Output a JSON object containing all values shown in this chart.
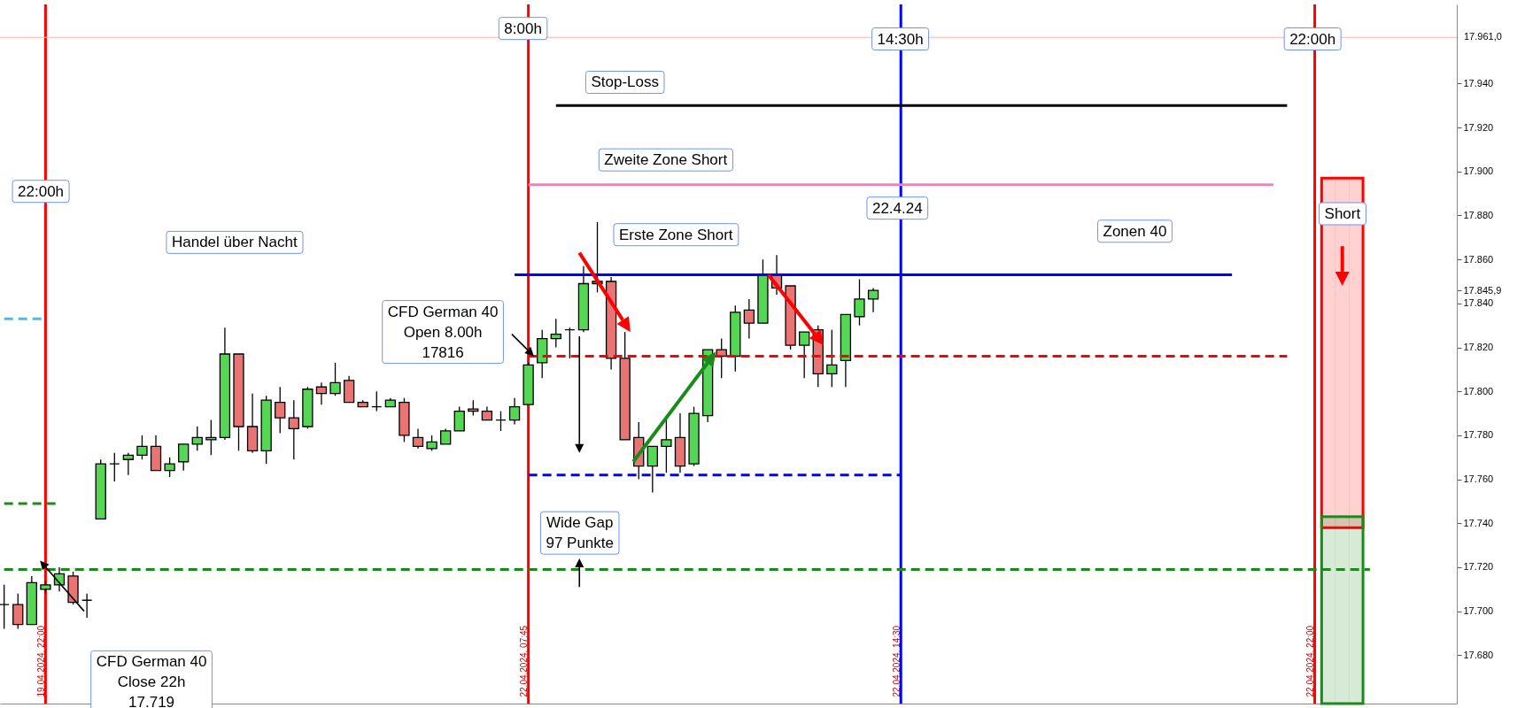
{
  "chart_data": {
    "type": "candlestick",
    "ylim": [
      17658,
      17976
    ],
    "categories": [
      null,
      null,
      null,
      "19.04.2024, 22:00",
      null,
      null,
      null,
      null,
      null,
      null,
      null,
      null,
      null,
      null,
      null,
      null,
      null,
      null,
      null,
      null,
      null,
      null,
      null,
      null,
      null,
      null,
      null,
      null,
      null,
      null,
      null,
      null,
      null,
      null,
      null,
      null,
      null,
      null,
      "22.04.2024, 07:45",
      null,
      null,
      null,
      null,
      null,
      null,
      null,
      null,
      null,
      null,
      null,
      null,
      null,
      null,
      null,
      null,
      null,
      null,
      null,
      null,
      null,
      null,
      null,
      null,
      null,
      null,
      "22.04.2024, 14:30",
      null,
      null,
      null,
      null,
      null,
      null,
      null,
      null,
      null,
      null,
      null,
      null,
      null,
      null,
      null,
      null,
      null,
      null,
      null,
      null,
      null,
      null,
      null,
      null,
      null,
      null,
      null,
      null,
      null,
      "22.04.2024, 22:00",
      null,
      null,
      null,
      null,
      null,
      null,
      null,
      null,
      null,
      null
    ],
    "yticks": [
      {
        "value": 17680,
        "label": "17.680"
      },
      {
        "value": 17700,
        "label": "17.700"
      },
      {
        "value": 17720,
        "label": "17.720"
      },
      {
        "value": 17740,
        "label": "17.740"
      },
      {
        "value": 17760,
        "label": "17.760"
      },
      {
        "value": 17780,
        "label": "17.780"
      },
      {
        "value": 17800,
        "label": "17.800"
      },
      {
        "value": 17820,
        "label": "17.820"
      },
      {
        "value": 17840,
        "label": "17.840"
      },
      {
        "value": 17845.9,
        "label": "17.845,9"
      },
      {
        "value": 17860,
        "label": "17.860"
      },
      {
        "value": 17880,
        "label": "17.880"
      },
      {
        "value": 17900,
        "label": "17.900"
      },
      {
        "value": 17920,
        "label": "17.920"
      },
      {
        "value": 17940,
        "label": "17.940"
      }
    ],
    "series": [
      {
        "type": "bar",
        "color": "#ff0000",
        "values": [
          null,
          null,
          null,
          null,
          null,
          null,
          null,
          null,
          null,
          null,
          null,
          null,
          null,
          null,
          null,
          null,
          null,
          null,
          null,
          null,
          null,
          null,
          null,
          null,
          null,
          null,
          null,
          null,
          null,
          null,
          null,
          null,
          null,
          null,
          null,
          null,
          null,
          null,
          null,
          null,
          null,
          null,
          null,
          null,
          null,
          null,
          null,
          null,
          null,
          null,
          null,
          null,
          null,
          null,
          null,
          null,
          null,
          null,
          null,
          null,
          null,
          null,
          null,
          null,
          null,
          null,
          null,
          null,
          null,
          null,
          null,
          null,
          null,
          null,
          null,
          null,
          null,
          null,
          null,
          null,
          null,
          null,
          null,
          null,
          null,
          null,
          null,
          null,
          null,
          null,
          null,
          null,
          null,
          null,
          null,
          null,
          159,
          159,
          159,
          null,
          null,
          null,
          null,
          null,
          null,
          null
        ],
        "base": [
          null,
          null,
          null,
          null,
          null,
          null,
          null,
          null,
          null,
          null,
          null,
          null,
          null,
          null,
          null,
          null,
          null,
          null,
          null,
          null,
          null,
          null,
          null,
          null,
          null,
          null,
          null,
          null,
          null,
          null,
          null,
          null,
          null,
          null,
          null,
          null,
          null,
          null,
          null,
          null,
          null,
          null,
          null,
          null,
          null,
          null,
          null,
          null,
          null,
          null,
          null,
          null,
          null,
          null,
          null,
          null,
          null,
          null,
          null,
          null,
          null,
          null,
          null,
          null,
          null,
          null,
          null,
          null,
          null,
          null,
          null,
          null,
          null,
          null,
          null,
          null,
          null,
          null,
          null,
          null,
          null,
          null,
          null,
          null,
          null,
          null,
          null,
          null,
          null,
          null,
          null,
          null,
          null,
          null,
          null,
          null,
          17738,
          17738,
          17738,
          null,
          null,
          null,
          null,
          null,
          null,
          null
        ]
      },
      {
        "type": "bar",
        "color": "#1a8a1a",
        "values": [
          null,
          null,
          null,
          null,
          null,
          null,
          null,
          null,
          null,
          null,
          null,
          null,
          null,
          null,
          null,
          null,
          null,
          null,
          null,
          null,
          null,
          null,
          null,
          null,
          null,
          null,
          null,
          null,
          null,
          null,
          null,
          null,
          null,
          null,
          null,
          null,
          null,
          null,
          null,
          null,
          null,
          null,
          null,
          null,
          null,
          null,
          null,
          null,
          null,
          null,
          null,
          null,
          null,
          null,
          null,
          null,
          null,
          null,
          null,
          null,
          null,
          null,
          null,
          null,
          null,
          null,
          null,
          null,
          null,
          null,
          null,
          null,
          null,
          null,
          null,
          null,
          null,
          null,
          null,
          null,
          null,
          null,
          null,
          null,
          null,
          null,
          null,
          null,
          null,
          null,
          null,
          null,
          null,
          null,
          null,
          null,
          85,
          85,
          85,
          null,
          null,
          null,
          null,
          null,
          null,
          null
        ],
        "base": [
          null,
          null,
          null,
          null,
          null,
          null,
          null,
          null,
          null,
          null,
          null,
          null,
          null,
          null,
          null,
          null,
          null,
          null,
          null,
          null,
          null,
          null,
          null,
          null,
          null,
          null,
          null,
          null,
          null,
          null,
          null,
          null,
          null,
          null,
          null,
          null,
          null,
          null,
          null,
          null,
          null,
          null,
          null,
          null,
          null,
          null,
          null,
          null,
          null,
          null,
          null,
          null,
          null,
          null,
          null,
          null,
          null,
          null,
          null,
          null,
          null,
          null,
          null,
          null,
          null,
          null,
          null,
          null,
          null,
          null,
          null,
          null,
          null,
          null,
          null,
          null,
          null,
          null,
          null,
          null,
          null,
          null,
          null,
          null,
          null,
          null,
          null,
          null,
          null,
          null,
          null,
          null,
          null,
          null,
          null,
          null,
          17658,
          17658,
          17658,
          null,
          null,
          null,
          null,
          null,
          null,
          null
        ]
      },
      {
        "type": "line",
        "color": "#1a8a1a",
        "line_style": "dashed",
        "values": [
          17719,
          17719,
          17719,
          17719,
          17719,
          17719,
          17719,
          17719,
          17719,
          17719,
          17719,
          17719,
          17719,
          17719,
          17719,
          17719,
          17719,
          17719,
          17719,
          17719,
          17719,
          17719,
          17719,
          17719,
          17719,
          17719,
          17719,
          17719,
          17719,
          17719,
          17719,
          17719,
          17719,
          17719,
          17719,
          17719,
          17719,
          17719,
          17719,
          17719,
          17719,
          17719,
          17719,
          17719,
          17719,
          17719,
          17719,
          17719,
          17719,
          17719,
          17719,
          17719,
          17719,
          17719,
          17719,
          17719,
          17719,
          17719,
          17719,
          17719,
          17719,
          17719,
          17719,
          17719,
          17719,
          17719,
          17719,
          17719,
          17719,
          17719,
          17719,
          17719,
          17719,
          17719,
          17719,
          17719,
          17719,
          17719,
          17719,
          17719,
          17719,
          17719,
          17719,
          17719,
          17719,
          17719,
          17719,
          17719,
          17719,
          17719,
          17719,
          17719,
          17719,
          17719,
          17719,
          17719,
          17719,
          17719,
          17719,
          17719,
          null,
          null,
          null,
          null,
          null,
          null
        ]
      },
      {
        "type": "line",
        "color": "#1a8a1a",
        "line_style": "dashed",
        "values": [
          17749,
          17749,
          17749,
          17749,
          17749,
          null,
          null,
          null,
          null,
          null,
          null,
          null,
          null,
          null,
          null,
          null,
          null,
          null,
          null,
          null,
          null,
          null,
          null,
          null,
          null,
          null,
          null,
          null,
          null,
          null,
          null,
          null,
          null,
          null,
          null,
          null,
          null,
          null,
          null,
          null,
          null,
          null,
          null,
          null,
          null,
          null,
          null,
          null,
          null,
          null,
          null,
          null,
          null,
          null,
          null,
          null,
          null,
          null,
          null,
          null,
          null,
          null,
          null,
          null,
          null,
          null,
          null,
          null,
          null,
          null,
          null,
          null,
          null,
          null,
          null,
          null,
          null,
          null,
          null,
          null,
          null,
          null,
          null,
          null,
          null,
          null,
          null,
          null,
          null,
          null,
          null,
          null,
          null,
          null,
          null,
          null,
          null,
          null,
          null,
          null,
          null,
          null,
          null,
          null,
          null,
          null
        ]
      },
      {
        "type": "line",
        "color": "#3fbfef",
        "line_style": "dashed",
        "values": [
          17833,
          17833,
          17833,
          17833,
          null,
          null,
          null,
          null,
          null,
          null,
          null,
          null,
          null,
          null,
          null,
          null,
          null,
          null,
          null,
          null,
          null,
          null,
          null,
          null,
          null,
          null,
          null,
          null,
          null,
          null,
          null,
          null,
          null,
          null,
          null,
          null,
          null,
          null,
          null,
          null,
          null,
          null,
          null,
          null,
          null,
          null,
          null,
          null,
          null,
          null,
          null,
          null,
          null,
          null,
          null,
          null,
          null,
          null,
          null,
          null,
          null,
          null,
          null,
          null,
          null,
          null,
          null,
          null,
          null,
          null,
          null,
          null,
          null,
          null,
          null,
          null,
          null,
          null,
          null,
          null,
          null,
          null,
          null,
          null,
          null,
          null,
          null,
          null,
          null,
          null,
          null,
          null,
          null,
          null,
          null,
          null,
          null,
          null,
          null,
          null,
          null,
          null,
          null,
          null,
          null,
          null
        ]
      },
      {
        "type": "line",
        "color": "#000000",
        "values": [
          null,
          null,
          null,
          null,
          null,
          null,
          null,
          null,
          null,
          null,
          null,
          null,
          null,
          null,
          null,
          null,
          null,
          null,
          null,
          null,
          null,
          null,
          null,
          null,
          null,
          null,
          null,
          null,
          null,
          null,
          null,
          null,
          null,
          null,
          null,
          null,
          null,
          null,
          null,
          null,
          17930,
          17930,
          17930,
          17930,
          17930,
          17930,
          17930,
          17930,
          17930,
          17930,
          17930,
          17930,
          17930,
          17930,
          17930,
          17930,
          17930,
          17930,
          17930,
          17930,
          17930,
          17930,
          17930,
          17930,
          17930,
          17930,
          17930,
          17930,
          17930,
          17930,
          17930,
          17930,
          17930,
          17930,
          17930,
          17930,
          17930,
          17930,
          17930,
          17930,
          17930,
          17930,
          17930,
          17930,
          17930,
          17930,
          17930,
          17930,
          17930,
          17930,
          17930,
          17930,
          17930,
          17930,
          null,
          null,
          null,
          null,
          null,
          null,
          null,
          null,
          null,
          null,
          null,
          null
        ]
      },
      {
        "type": "line",
        "color": "#f080c0",
        "values": [
          null,
          null,
          null,
          null,
          null,
          null,
          null,
          null,
          null,
          null,
          null,
          null,
          null,
          null,
          null,
          null,
          null,
          null,
          null,
          null,
          null,
          null,
          null,
          null,
          null,
          null,
          null,
          null,
          null,
          null,
          null,
          null,
          null,
          null,
          null,
          null,
          null,
          null,
          17894,
          17894,
          17894,
          17894,
          17894,
          17894,
          17894,
          17894,
          17894,
          17894,
          17894,
          17894,
          17894,
          17894,
          17894,
          17894,
          17894,
          17894,
          17894,
          17894,
          17894,
          17894,
          17894,
          17894,
          17894,
          17894,
          17894,
          17894,
          17894,
          17894,
          17894,
          17894,
          17894,
          17894,
          17894,
          17894,
          17894,
          17894,
          17894,
          17894,
          17894,
          17894,
          17894,
          17894,
          17894,
          17894,
          17894,
          17894,
          17894,
          17894,
          17894,
          17894,
          17894,
          17894,
          17894,
          null,
          null,
          null,
          null,
          null,
          null,
          null,
          null,
          null,
          null,
          null,
          null,
          null
        ]
      },
      {
        "type": "line",
        "color": "#0000ff",
        "values": [
          null,
          null,
          null,
          null,
          null,
          null,
          null,
          null,
          null,
          null,
          null,
          null,
          null,
          null,
          null,
          null,
          null,
          null,
          null,
          null,
          null,
          null,
          null,
          null,
          null,
          null,
          null,
          null,
          null,
          null,
          null,
          null,
          null,
          null,
          null,
          null,
          null,
          17853,
          17853,
          17853,
          17853,
          17853,
          17853,
          17853,
          17853,
          17853,
          17853,
          17853,
          17853,
          17853,
          17853,
          17853,
          17853,
          17853,
          17853,
          17853,
          17853,
          17853,
          17853,
          17853,
          17853,
          17853,
          17853,
          17853,
          17853,
          17853,
          17853,
          17853,
          17853,
          17853,
          17853,
          17853,
          17853,
          17853,
          17853,
          17853,
          17853,
          17853,
          17853,
          17853,
          17853,
          17853,
          17853,
          17853,
          17853,
          17853,
          17853,
          17853,
          17853,
          17853,
          null,
          null,
          null,
          null,
          null,
          null,
          null,
          null,
          null,
          null,
          null,
          null,
          null,
          null,
          null,
          null
        ]
      },
      {
        "type": "line",
        "color": "#ff0000",
        "line_style": "dashed",
        "values": [
          null,
          null,
          null,
          null,
          null,
          null,
          null,
          null,
          null,
          null,
          null,
          null,
          null,
          null,
          null,
          null,
          null,
          null,
          null,
          null,
          null,
          null,
          null,
          null,
          null,
          null,
          null,
          null,
          null,
          null,
          null,
          null,
          null,
          null,
          null,
          null,
          null,
          null,
          17816,
          17816,
          17816,
          17816,
          17816,
          17816,
          17816,
          17816,
          17816,
          17816,
          17816,
          17816,
          17816,
          17816,
          17816,
          17816,
          17816,
          17816,
          17816,
          17816,
          17816,
          17816,
          17816,
          17816,
          17816,
          17816,
          17816,
          17816,
          17816,
          17816,
          17816,
          17816,
          17816,
          17816,
          17816,
          17816,
          17816,
          17816,
          17816,
          17816,
          17816,
          17816,
          17816,
          17816,
          17816,
          17816,
          17816,
          17816,
          17816,
          17816,
          17816,
          17816,
          17816,
          17816,
          17816,
          17816,
          null,
          null,
          null,
          null,
          null,
          null,
          null,
          null,
          null,
          null,
          null,
          null
        ]
      },
      {
        "type": "line",
        "color": "#0000ff",
        "line_style": "dashed",
        "values": [
          null,
          null,
          null,
          null,
          null,
          null,
          null,
          null,
          null,
          null,
          null,
          null,
          null,
          null,
          null,
          null,
          null,
          null,
          null,
          null,
          null,
          null,
          null,
          null,
          null,
          null,
          null,
          null,
          null,
          null,
          null,
          null,
          null,
          null,
          null,
          null,
          null,
          null,
          17762,
          17762,
          17762,
          17762,
          17762,
          17762,
          17762,
          17762,
          17762,
          17762,
          17762,
          17762,
          17762,
          17762,
          17762,
          17762,
          17762,
          17762,
          17762,
          17762,
          17762,
          17762,
          17762,
          17762,
          17762,
          17762,
          17762,
          17762,
          null,
          null,
          null,
          null,
          null,
          null,
          null,
          null,
          null,
          null,
          null,
          null,
          null,
          null,
          null,
          null,
          null,
          null,
          null,
          null,
          null,
          null,
          null,
          null,
          null,
          null,
          null,
          null,
          null,
          null,
          null,
          null,
          null,
          null,
          null,
          null,
          null,
          null,
          null,
          null
        ]
      },
      {
        "ohlc": [
          [
            17703,
            17712,
            17692,
            17703
          ],
          [
            17703,
            17708,
            17692,
            17694
          ],
          [
            17694,
            17716,
            17694,
            17713
          ],
          [
            17710,
            17714,
            17708,
            17712
          ],
          [
            17712,
            17720,
            17709,
            17717
          ],
          [
            17716,
            17718,
            17703,
            17704
          ],
          [
            17705,
            17708,
            17697,
            17705
          ],
          [
            17742,
            17769,
            17742,
            17767
          ],
          [
            17767,
            17772,
            17759,
            17767
          ],
          [
            17769,
            17772,
            17762,
            17771
          ],
          [
            17771,
            17780,
            17769,
            17775
          ],
          [
            17775,
            17780,
            17764,
            17764
          ],
          [
            17764,
            17770,
            17761,
            17767
          ],
          [
            17768,
            17776,
            17764,
            17776
          ],
          [
            17776,
            17784,
            17773,
            17779
          ],
          [
            17778,
            17787,
            17771,
            17779
          ],
          [
            17779,
            17829,
            17778,
            17817
          ],
          [
            17817,
            17817,
            17773,
            17784
          ],
          [
            17784,
            17799,
            17772,
            17773
          ],
          [
            17773,
            17798,
            17767,
            17796
          ],
          [
            17795,
            17802,
            17781,
            17788
          ],
          [
            17788,
            17796,
            17769,
            17783
          ],
          [
            17784,
            17802,
            17783,
            17801
          ],
          [
            17802,
            17804,
            17794,
            17799
          ],
          [
            17799,
            17813,
            17798,
            17804
          ],
          [
            17805,
            17807,
            17795,
            17795
          ],
          [
            17795,
            17796,
            17793,
            17793
          ],
          [
            17793,
            17800,
            17791,
            17793
          ],
          [
            17793,
            17797,
            17793,
            17796
          ],
          [
            17795,
            17797,
            17777,
            17780
          ],
          [
            17779,
            17783,
            17774,
            17775
          ],
          [
            17774,
            17780,
            17773,
            17777
          ],
          [
            17776,
            17783,
            17776,
            17782
          ],
          [
            17782,
            17793,
            17782,
            17791
          ],
          [
            17792,
            17796,
            17789,
            17791
          ],
          [
            17791,
            17793,
            17787,
            17787
          ],
          [
            17787,
            17791,
            17782,
            17787
          ],
          [
            17787,
            17797,
            17785,
            17793
          ],
          [
            17794,
            17813,
            17794,
            17812
          ],
          [
            17813,
            17828,
            17806,
            17824
          ],
          [
            17824,
            17833,
            17820,
            17826
          ],
          [
            17828,
            17829,
            17815,
            17828
          ],
          [
            17828,
            17857,
            17827,
            17849
          ],
          [
            17850,
            17877,
            17845,
            17849
          ],
          [
            17850,
            17852,
            17810,
            17815
          ],
          [
            17815,
            17827,
            17778,
            17778
          ],
          [
            17779,
            17786,
            17760,
            17766
          ],
          [
            17766,
            17775,
            17754,
            17775
          ],
          [
            17775,
            17788,
            17763,
            17778
          ],
          [
            17779,
            17790,
            17763,
            17766
          ],
          [
            17767,
            17793,
            17766,
            17790
          ],
          [
            17789,
            17819,
            17786,
            17819
          ],
          [
            17819,
            17824,
            17806,
            17816
          ],
          [
            17816,
            17839,
            17809,
            17836
          ],
          [
            17837,
            17842,
            17824,
            17831
          ],
          [
            17831,
            17860,
            17831,
            17853
          ],
          [
            17853,
            17862,
            17844,
            17847
          ],
          [
            17848,
            17848,
            17819,
            17821
          ],
          [
            17821,
            17827,
            17806,
            17827
          ],
          [
            17828,
            17830,
            17802,
            17808
          ],
          [
            17808,
            17828,
            17802,
            17812
          ],
          [
            17814,
            17835,
            17802,
            17835
          ],
          [
            17834,
            17851,
            17830,
            17842
          ],
          [
            17842,
            17847,
            17836,
            17845.9
          ],
          null,
          null,
          null,
          null,
          null,
          null,
          null,
          null,
          null,
          null,
          null,
          null,
          null,
          null,
          null,
          null,
          null,
          null,
          null,
          null,
          null,
          null,
          null,
          null,
          null,
          null,
          null,
          null,
          null,
          null,
          null,
          null,
          null,
          null,
          null,
          null,
          null,
          null,
          null,
          null,
          null,
          null
        ],
        "colors": [
          "#000000",
          "#e87474",
          "#55d655",
          "#55d655",
          "#55d655",
          "#e87474",
          "#000000",
          "#55d655",
          "#000000",
          "#55d655",
          "#55d655",
          "#e87474",
          "#55d655",
          "#55d655",
          "#55d655",
          "#55d655",
          "#55d655",
          "#e87474",
          "#e87474",
          "#55d655",
          "#e87474",
          "#e87474",
          "#55d655",
          "#e87474",
          "#55d655",
          "#e87474",
          "#e87474",
          "#000000",
          "#55d655",
          "#e87474",
          "#e87474",
          "#55d655",
          "#55d655",
          "#55d655",
          "#e87474",
          "#e87474",
          "#000000",
          "#55d655",
          "#55d655",
          "#55d655",
          "#55d655",
          "#000000",
          "#55d655",
          "#e87474",
          "#e87474",
          "#e87474",
          "#e87474",
          "#55d655",
          "#55d655",
          "#e87474",
          "#55d655",
          "#55d655",
          "#e87474",
          "#55d655",
          "#e87474",
          "#55d655",
          "#e87474",
          "#e87474",
          "#55d655",
          "#e87474",
          "#55d655",
          "#55d655",
          "#55d655",
          "#55d655",
          null,
          null,
          null,
          null,
          null,
          null,
          null,
          null,
          null,
          null,
          null,
          null,
          null,
          null,
          null,
          null,
          null,
          null,
          null,
          null,
          null,
          null,
          null,
          null,
          null,
          null,
          null,
          null,
          null,
          null,
          null,
          null,
          null,
          null,
          null,
          null,
          null,
          null,
          null,
          null,
          null,
          null
        ]
      }
    ],
    "ref_lines": [
      {
        "axis": "x",
        "value": "19.04.2024, 22:00",
        "color": "#ff0000"
      },
      {
        "axis": "x",
        "value": "22.04.2024, 07:45",
        "color": "#ff0000"
      },
      {
        "axis": "x",
        "value": "22.04.2024, 14:30",
        "color": "#0000ff"
      },
      {
        "axis": "x",
        "value": "22.04.2024, 22:00",
        "color": "#ff0000"
      },
      {
        "axis": "y",
        "value": 17961,
        "label": "17.961,0",
        "color": "#ffb0b0"
      }
    ],
    "annotations": [
      "22:00h",
      "Handel über Nacht",
      "CFD German 40\nOpen 8.00h\n17816",
      "CFD German 40\nClose 22h\n17.719",
      "8:00h",
      "14:30h",
      "22:00h",
      "Stop-Loss",
      "Zweite Zone Short",
      "22.4.24",
      "Zonen 40",
      "Erste Zone Short",
      "Wide Gap\n97 Punkte",
      "Short"
    ]
  }
}
